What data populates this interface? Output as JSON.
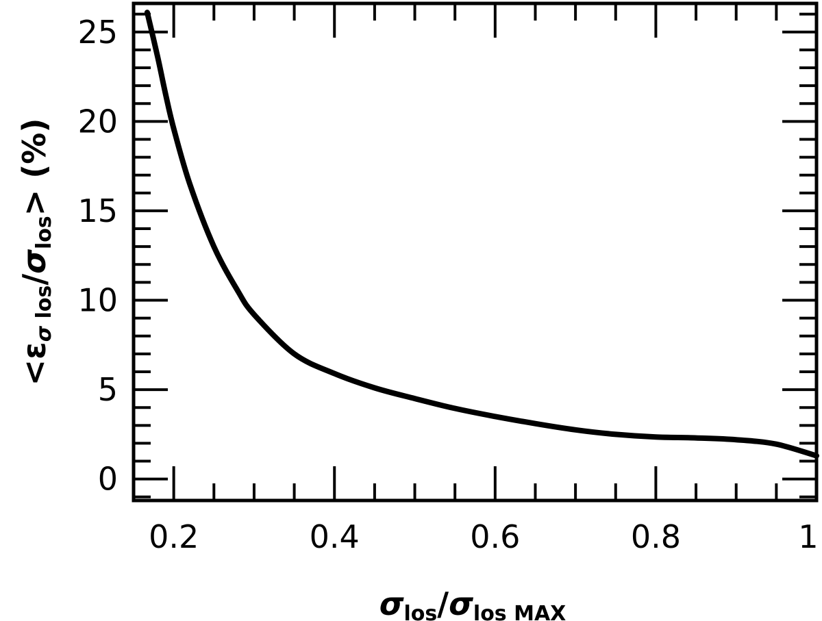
{
  "chart_data": {
    "type": "line",
    "xlim": [
      0.15,
      1.0
    ],
    "ylim": [
      -1.2,
      26.6
    ],
    "x_ticks": [
      {
        "value": 0.2,
        "label": "0.2"
      },
      {
        "value": 0.4,
        "label": "0.4"
      },
      {
        "value": 0.6,
        "label": "0.6"
      },
      {
        "value": 0.8,
        "label": "0.8"
      },
      {
        "value": 1.0,
        "label": "1"
      }
    ],
    "x_minor_step": 0.05,
    "y_ticks": [
      {
        "value": 0,
        "label": "0"
      },
      {
        "value": 5,
        "label": "5"
      },
      {
        "value": 10,
        "label": "10"
      },
      {
        "value": 15,
        "label": "15"
      },
      {
        "value": 20,
        "label": "20"
      },
      {
        "value": 25,
        "label": "25"
      }
    ],
    "y_minor_step": 1,
    "xlabel": {
      "symbol": "σ",
      "sub1": "los",
      "slash": "/",
      "symbol2": "σ",
      "sub2": "los MAX"
    },
    "ylabel": {
      "open": "<",
      "symbol": "ε",
      "sub_symbol": "σ",
      "sub_text": " los",
      "slash": "/",
      "symbol2": "σ",
      "sub2": "los",
      "close": ">",
      "unit": " (%)"
    },
    "grid": false,
    "series": [
      {
        "x": [
          0.167,
          0.18,
          0.19,
          0.2,
          0.22,
          0.25,
          0.28,
          0.3,
          0.35,
          0.4,
          0.45,
          0.5,
          0.55,
          0.6,
          0.65,
          0.7,
          0.75,
          0.8,
          0.85,
          0.9,
          0.95,
          1.0
        ],
        "y": [
          26.1,
          23.6,
          21.5,
          19.6,
          16.5,
          13.0,
          10.5,
          9.2,
          7.0,
          5.9,
          5.1,
          4.5,
          3.95,
          3.5,
          3.1,
          2.75,
          2.5,
          2.35,
          2.3,
          2.2,
          1.95,
          1.3
        ]
      }
    ]
  }
}
